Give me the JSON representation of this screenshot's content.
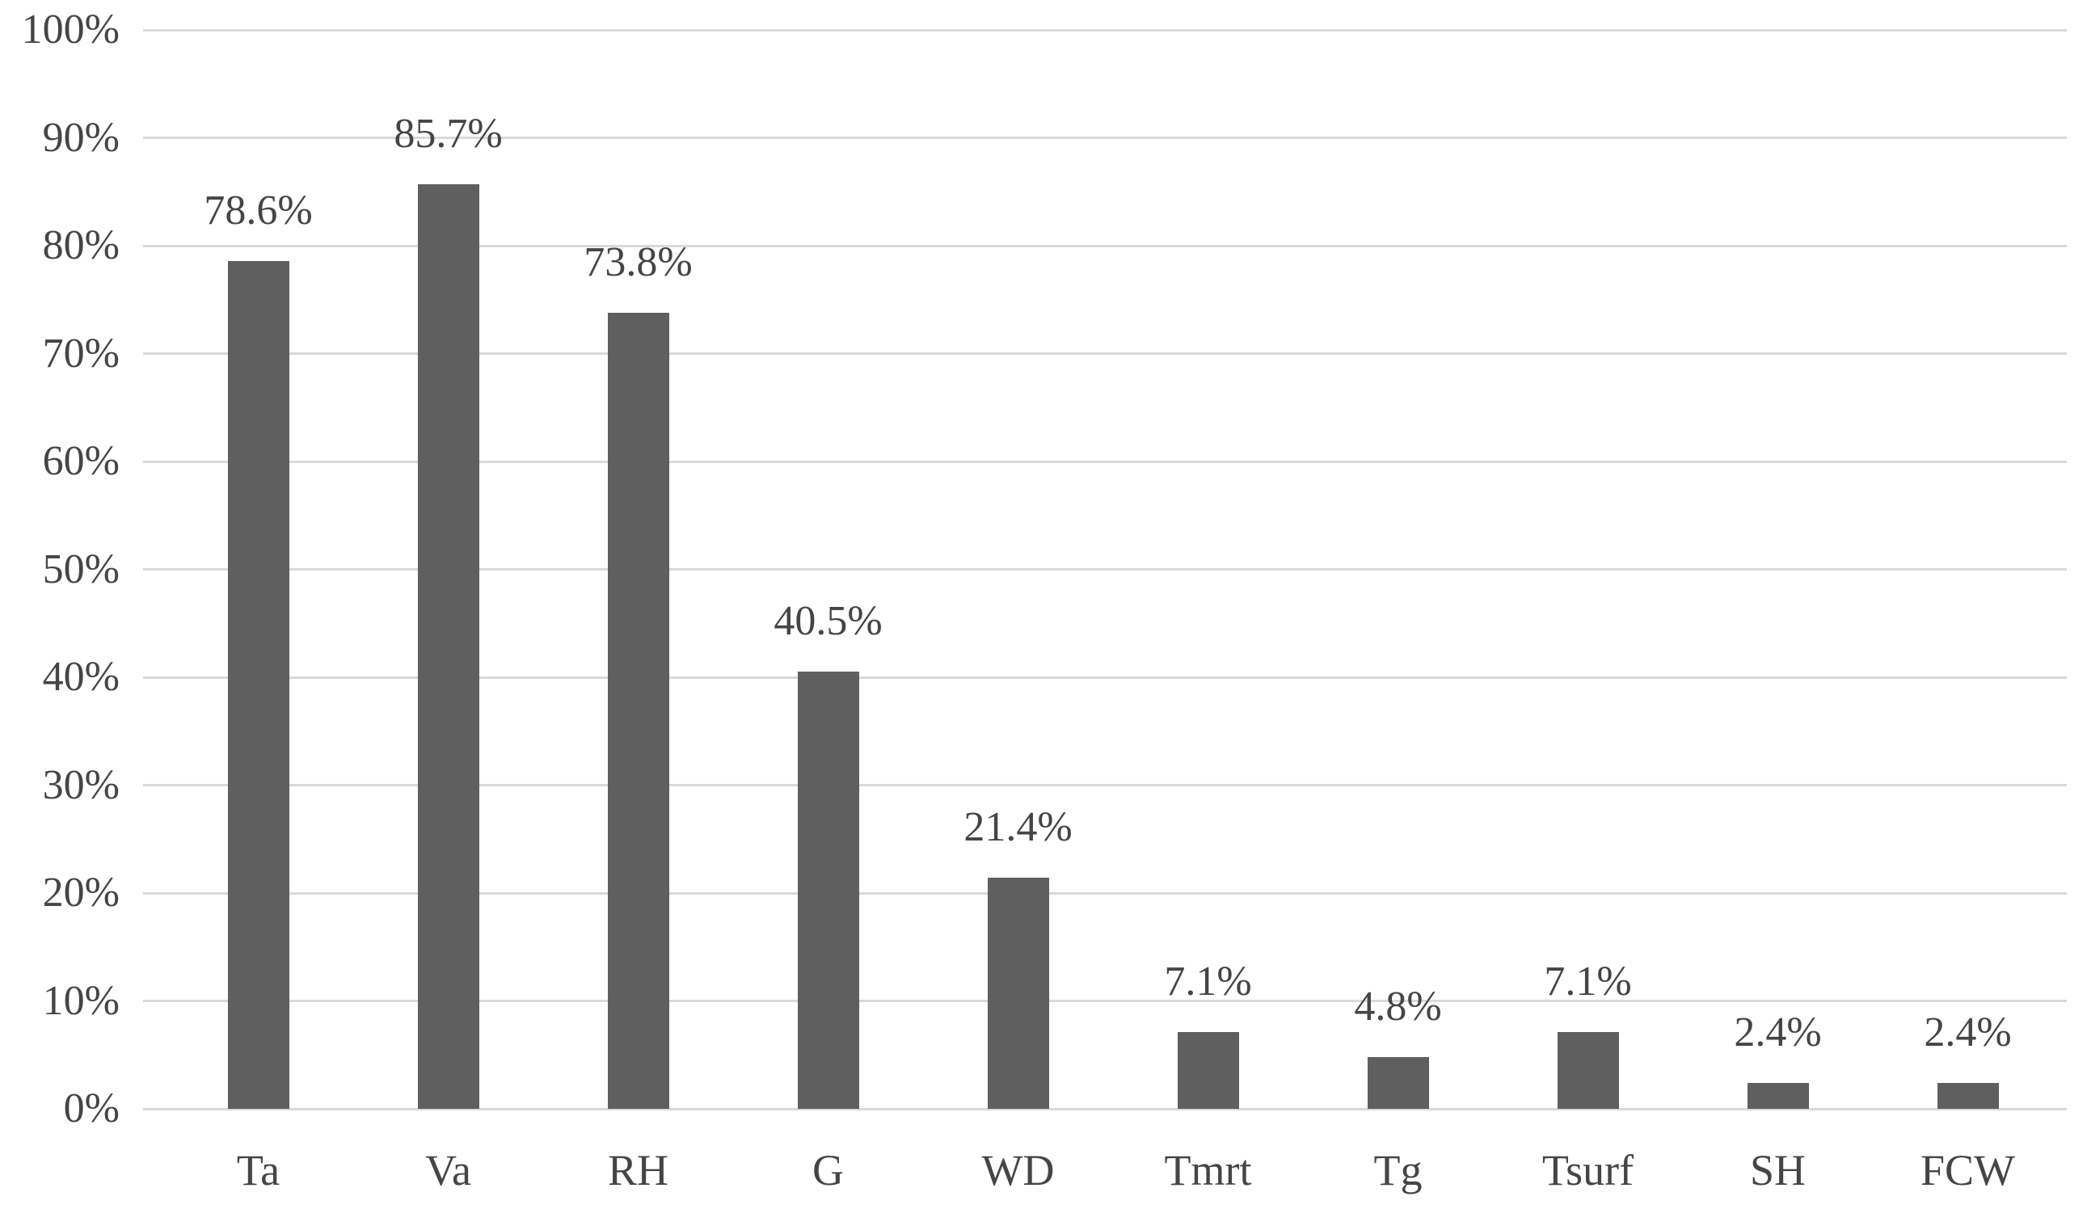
{
  "chart_data": {
    "type": "bar",
    "title": "",
    "xlabel": "",
    "ylabel": "",
    "categories": [
      "Ta",
      "Va",
      "RH",
      "G",
      "WD",
      "Tmrt",
      "Tg",
      "Tsurf",
      "SH",
      "FCW"
    ],
    "values": [
      78.6,
      85.7,
      73.8,
      40.5,
      21.4,
      7.1,
      4.8,
      7.1,
      2.4,
      2.4
    ],
    "data_labels": [
      "78.6%",
      "85.7%",
      "73.8%",
      "40.5%",
      "21.4%",
      "7.1%",
      "4.8%",
      "7.1%",
      "2.4%",
      "2.4%"
    ],
    "ytick_values": [
      0,
      10,
      20,
      30,
      40,
      50,
      60,
      70,
      80,
      90,
      100
    ],
    "ytick_labels": [
      "0%",
      "10%",
      "20%",
      "30%",
      "40%",
      "50%",
      "60%",
      "70%",
      "80%",
      "90%",
      "100%"
    ],
    "ylim": [
      0,
      100
    ],
    "grid": true,
    "legend_position": "none",
    "colors": {
      "bar": "#5F5F5F",
      "gridline": "#D9D9D9",
      "text": "#454545",
      "background": "#FFFFFF"
    }
  }
}
